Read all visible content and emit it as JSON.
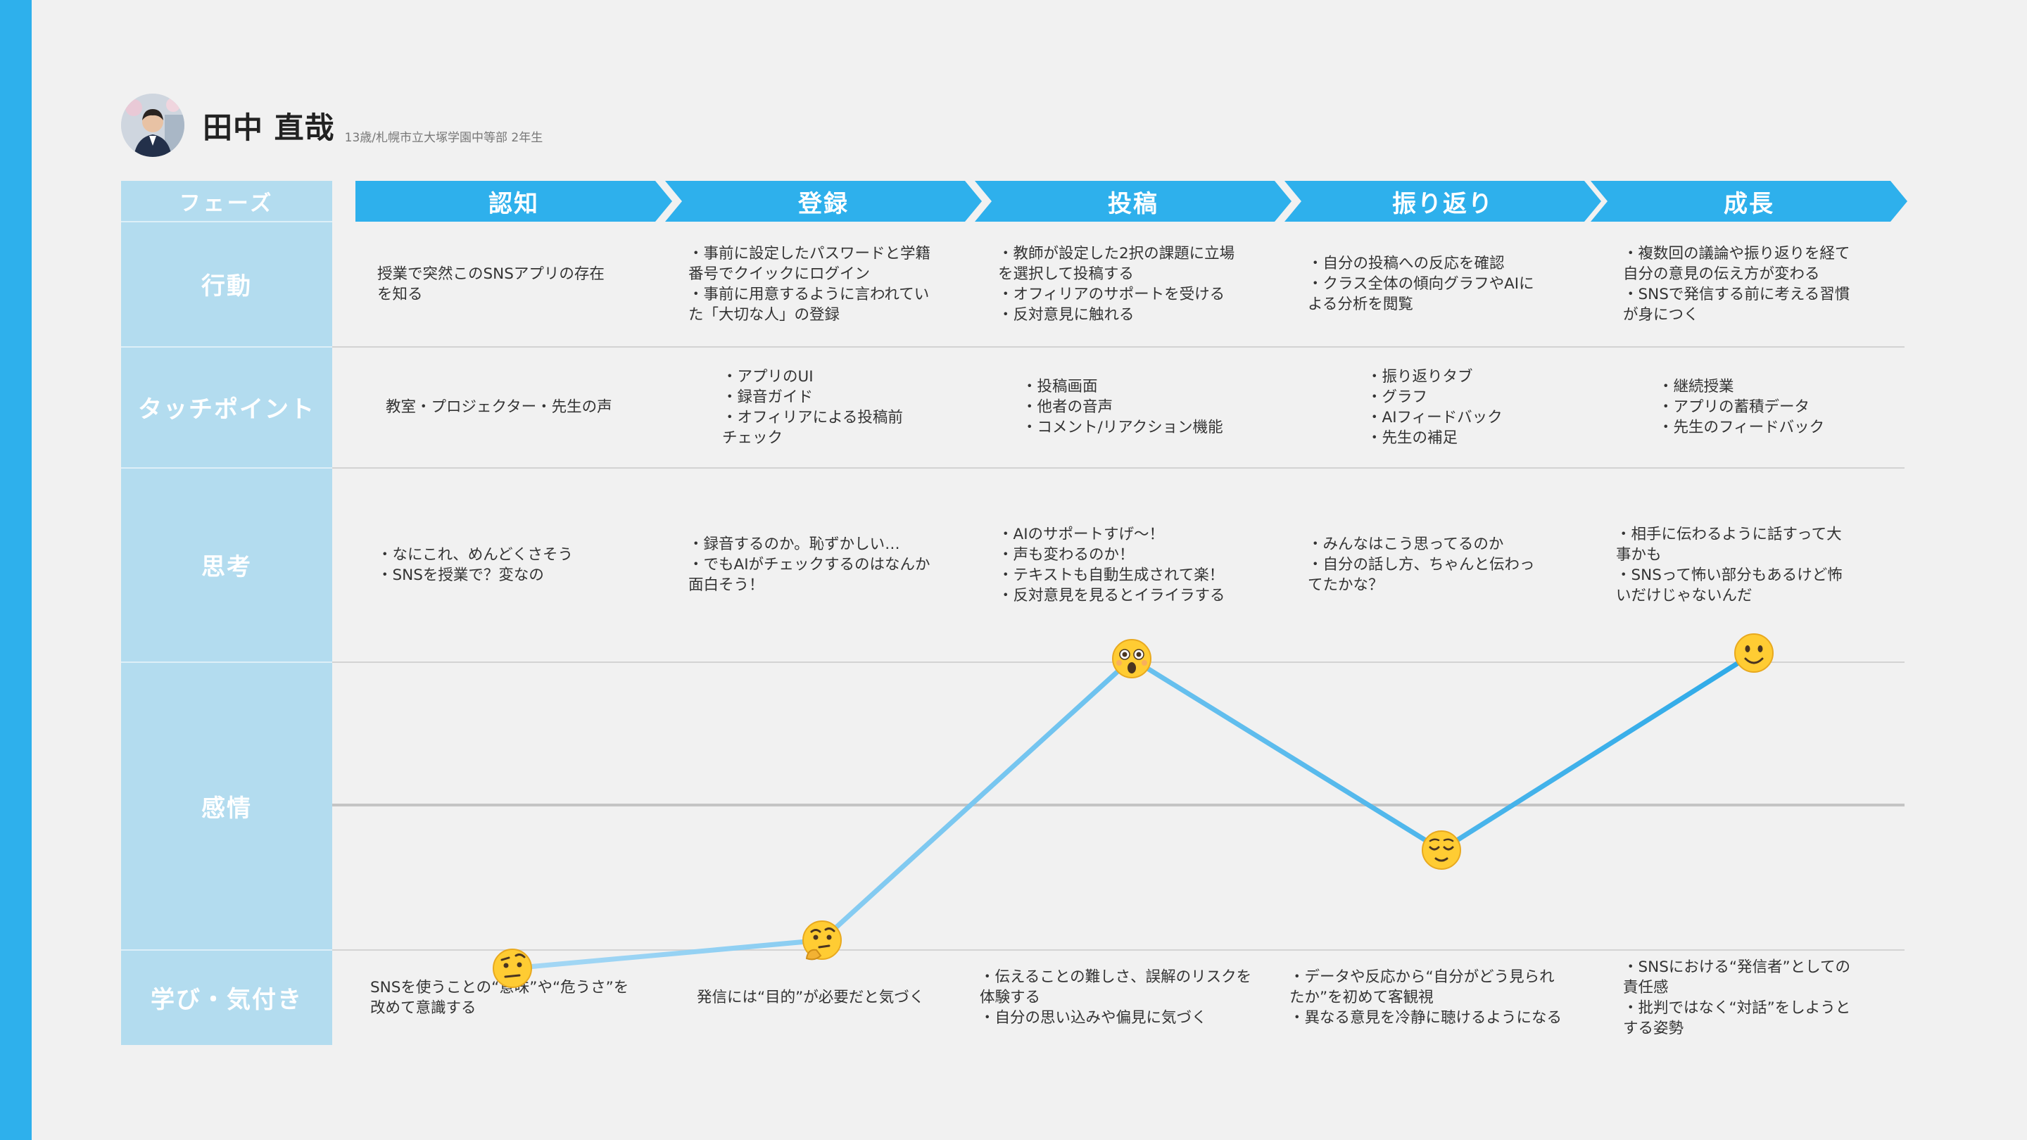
{
  "profile": {
    "name": "田中 直哉",
    "subtitle": "13歳/札幌市立大塚学園中等部 2年生",
    "avatar_icon": "student-portrait"
  },
  "row_labels": {
    "phase": "フェーズ",
    "action": "行動",
    "touchpoint": "タッチポイント",
    "thought": "思考",
    "emotion": "感情",
    "learning": "学び・気付き"
  },
  "phases": [
    "認知",
    "登録",
    "投稿",
    "振り返り",
    "成長"
  ],
  "actions": [
    "授業で突然このSNSアプリの存在\nを知る",
    "・事前に設定したパスワードと学籍\n番号でクイックにログイン\n・事前に用意するように言われてい\nた「大切な人」の登録",
    "・教師が設定した2択の課題に立場\nを選択して投稿する\n・オフィリアのサポートを受ける\n・反対意見に触れる",
    "・自分の投稿への反応を確認\n・クラス全体の傾向グラフやAIに\nよる分析を閲覧",
    "・複数回の議論や振り返りを経て\n自分の意見の伝え方が変わる\n・SNSで発信する前に考える習慣\nが身につく"
  ],
  "touchpoints": [
    "教室・プロジェクター・先生の声",
    "・アプリのUI\n・録音ガイド\n・オフィリアによる投稿前\nチェック",
    "・投稿画面\n・他者の音声\n・コメント/リアクション機能",
    "・振り返りタブ\n・グラフ\n・AIフィードバック\n・先生の補足",
    "・継続授業\n・アプリの蓄積データ\n・先生のフィードバック"
  ],
  "thoughts": [
    "・なにこれ、めんどくさそう\n・SNSを授業で？変なの",
    "・録音するのか。恥ずかしい…\n・でもAIがチェックするのはなんか\n面白そう！",
    "・AIのサポートすげ〜！\n・声も変わるのか！\n・テキストも自動生成されて楽！\n・反対意見を見るとイライラする",
    "・みんなはこう思ってるのか\n・自分の話し方、ちゃんと伝わっ\nてたかな？",
    "・相手に伝わるように話すって大\n事かも\n・SNSって怖い部分もあるけど怖\nいだけじゃないんだ"
  ],
  "learnings": [
    "SNSを使うことの“意味”や“危うさ”を\n改めて意識する",
    "発信には“目的”が必要だと気づく",
    "・伝えることの難しさ、誤解のリスクを\n体験する\n・自分の思い込みや偏見に気づく",
    "・データや反応から“自分がどう見られ\nたか”を初めて客観視\n・異なる意見を冷静に聴けるようになる",
    "・SNSにおける“発信者”としての\n責任感\n・批判ではなく“対話”をしようと\nする姿勢"
  ],
  "chart_data": {
    "type": "line",
    "categories": [
      "認知",
      "登録",
      "投稿",
      "振り返り",
      "成長"
    ],
    "values": [
      -0.58,
      -0.48,
      0.52,
      -0.16,
      0.54
    ],
    "ylim": [
      -1,
      1
    ],
    "baseline": 0,
    "emotion_icons": [
      "skeptical-face",
      "thinking-face",
      "astonished-face",
      "relieved-face",
      "smiling-face"
    ],
    "colors": {
      "line_start": "#a6d8f5",
      "line_end": "#2eaae8",
      "baseline": "#c4c4c4"
    }
  }
}
